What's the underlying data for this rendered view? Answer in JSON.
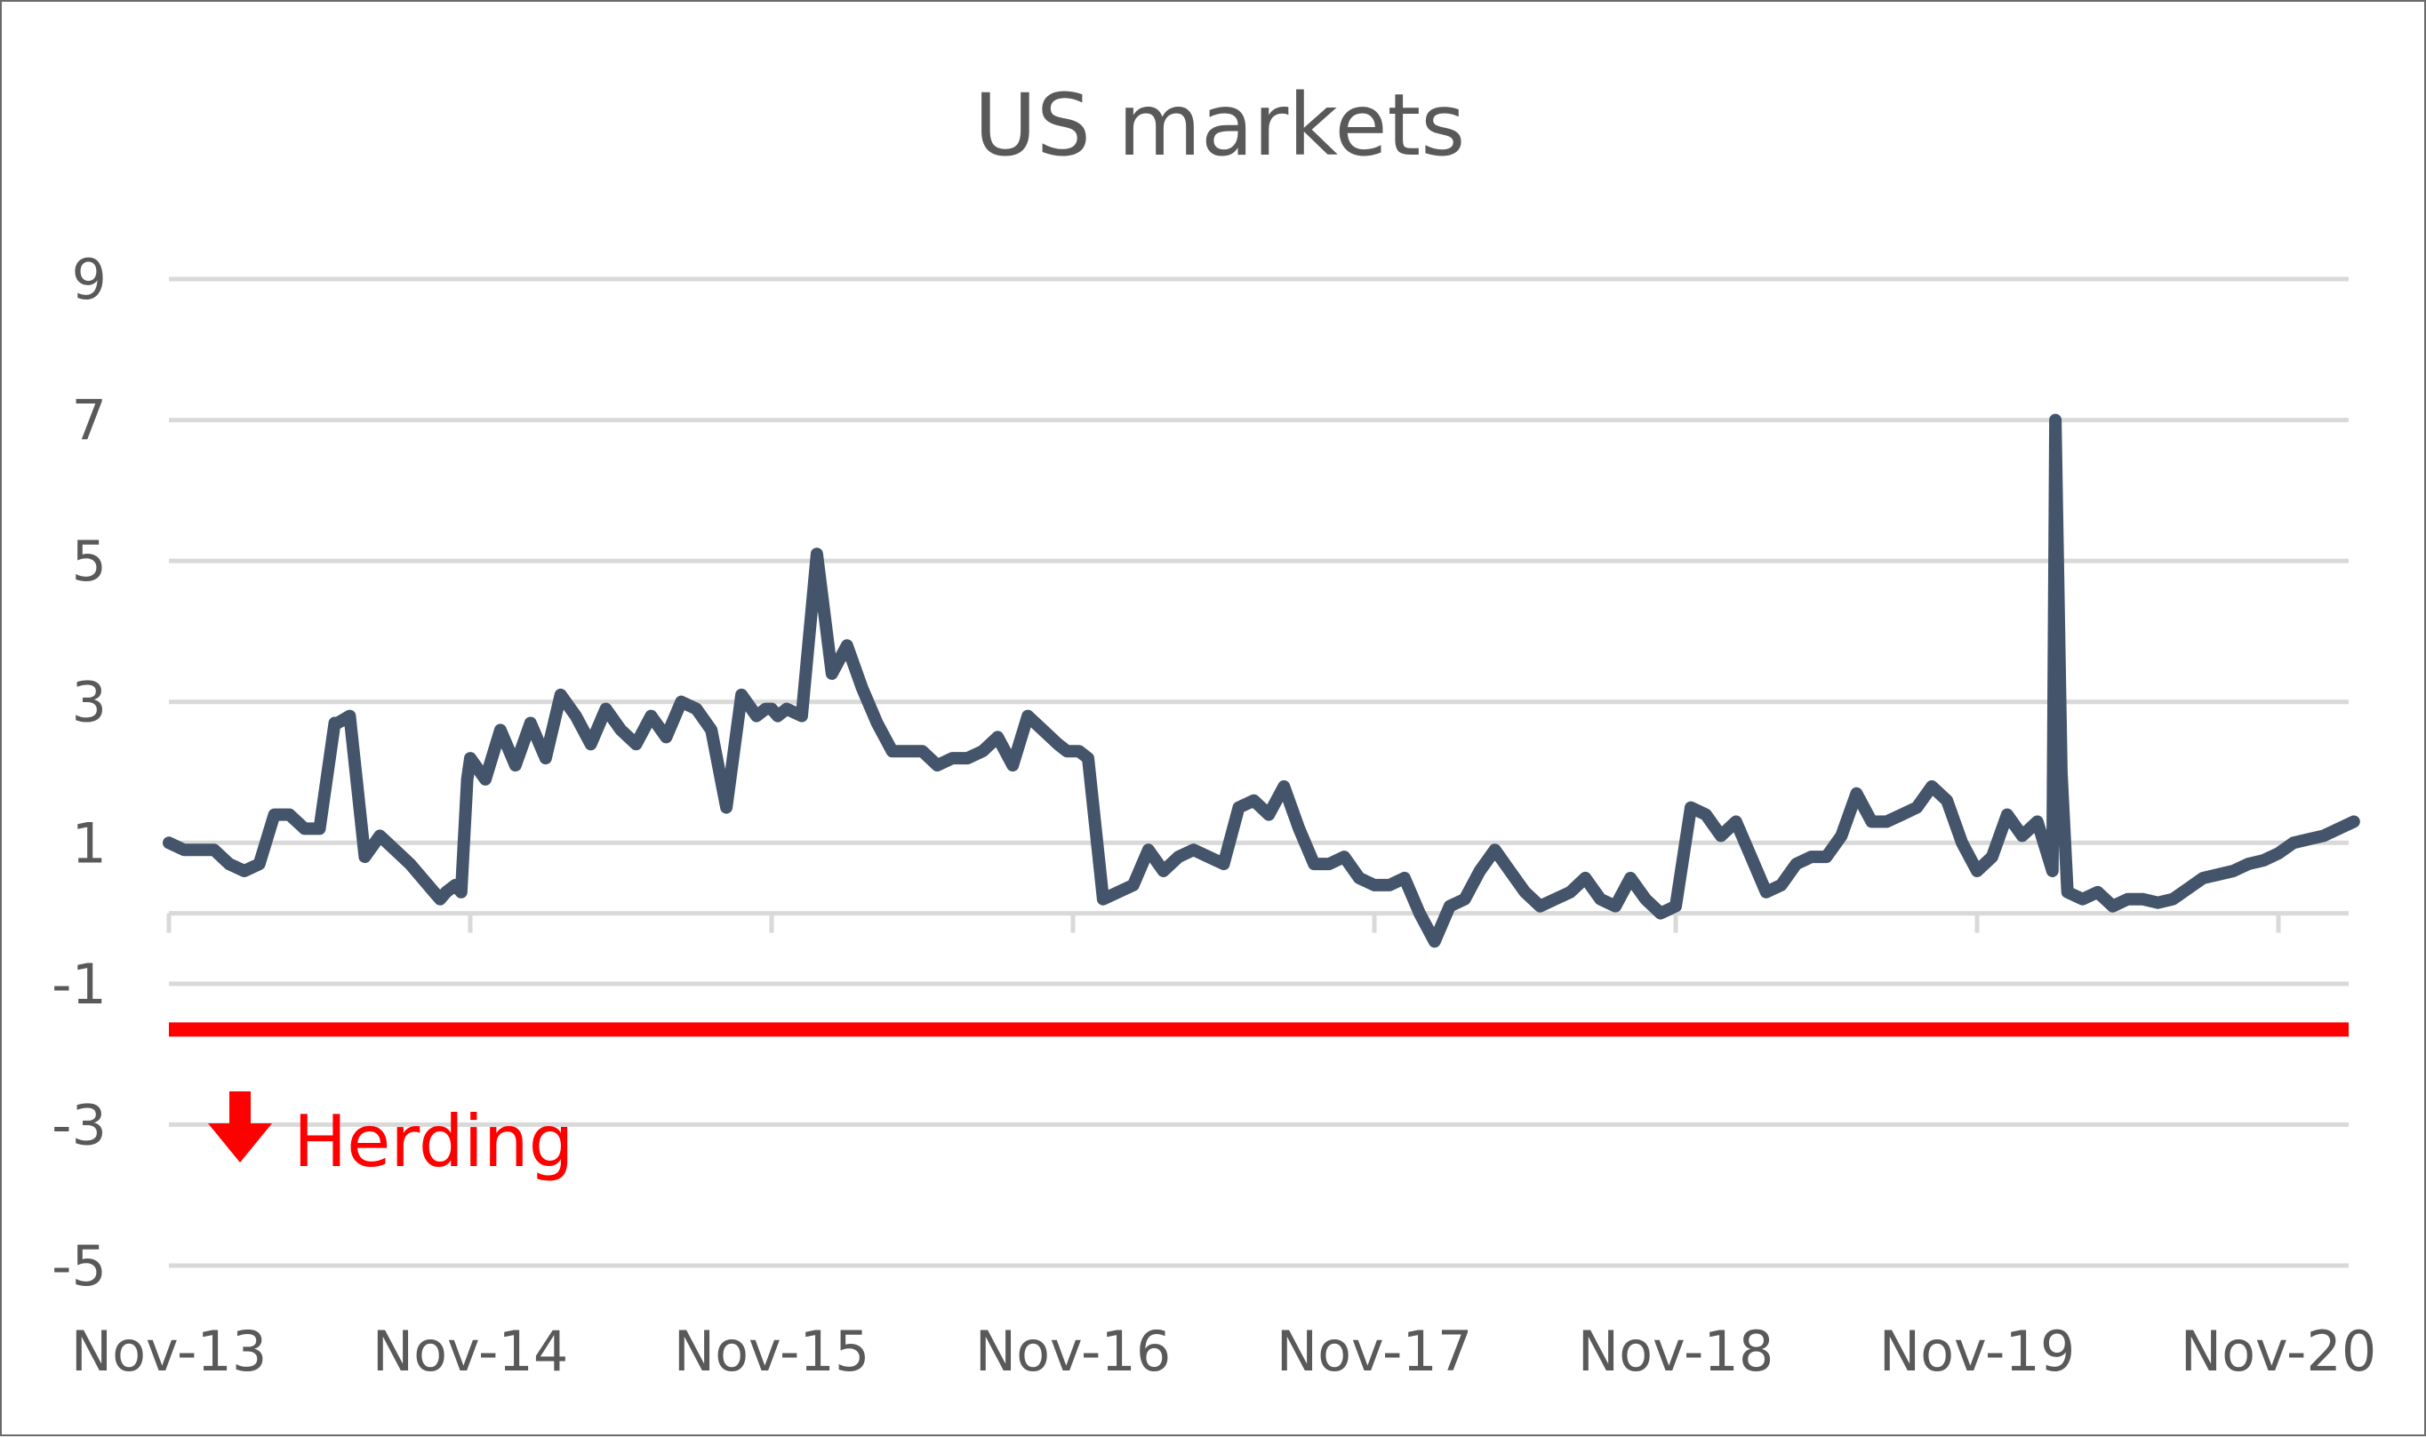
{
  "chart_data": {
    "type": "line",
    "title": "US markets",
    "xlabel": "",
    "ylabel": "",
    "x_tick_labels": [
      "Nov-13",
      "Nov-14",
      "Nov-15",
      "Nov-16",
      "Nov-17",
      "Nov-18",
      "Nov-19",
      "Nov-20"
    ],
    "y_ticks": [
      9,
      7,
      5,
      3,
      1,
      -1,
      -3,
      -5
    ],
    "ylim": [
      -5,
      9
    ],
    "xlim": [
      0,
      7.25
    ],
    "x_axis_crosses_at": 0,
    "grid": true,
    "series": [
      {
        "color": "#44546a",
        "x": [
          0,
          0.05,
          0.1,
          0.15,
          0.2,
          0.25,
          0.3,
          0.35,
          0.4,
          0.45,
          0.5,
          0.55,
          0.56,
          0.6,
          0.65,
          0.7,
          0.75,
          0.8,
          0.88,
          0.9,
          0.92,
          0.95,
          0.97,
          0.99,
          1.0,
          1.05,
          1.1,
          1.15,
          1.2,
          1.25,
          1.3,
          1.35,
          1.4,
          1.45,
          1.5,
          1.55,
          1.6,
          1.65,
          1.7,
          1.75,
          1.8,
          1.85,
          1.9,
          1.95,
          1.98,
          2.0,
          2.02,
          2.05,
          2.1,
          2.15,
          2.2,
          2.25,
          2.3,
          2.35,
          2.4,
          2.45,
          2.5,
          2.55,
          2.6,
          2.65,
          2.7,
          2.75,
          2.8,
          2.85,
          2.9,
          2.95,
          2.98,
          3.0,
          3.02,
          3.05,
          3.1,
          3.15,
          3.2,
          3.25,
          3.3,
          3.35,
          3.4,
          3.45,
          3.5,
          3.55,
          3.6,
          3.65,
          3.7,
          3.75,
          3.8,
          3.85,
          3.9,
          3.95,
          4.0,
          4.05,
          4.1,
          4.15,
          4.2,
          4.25,
          4.3,
          4.35,
          4.4,
          4.45,
          4.5,
          4.55,
          4.6,
          4.65,
          4.7,
          4.75,
          4.8,
          4.85,
          4.9,
          4.95,
          5.0,
          5.05,
          5.1,
          5.15,
          5.2,
          5.25,
          5.3,
          5.35,
          5.4,
          5.45,
          5.5,
          5.55,
          5.6,
          5.65,
          5.7,
          5.75,
          5.8,
          5.85,
          5.9,
          5.95,
          6.0,
          6.05,
          6.1,
          6.15,
          6.2,
          6.25,
          6.26,
          6.28,
          6.3,
          6.35,
          6.4,
          6.45,
          6.5,
          6.55,
          6.6,
          6.65,
          6.7,
          6.75,
          6.8,
          6.85,
          6.9,
          6.95,
          7.0,
          7.05,
          7.1,
          7.15,
          7.2,
          7.25
        ],
        "y": [
          1.0,
          0.9,
          0.9,
          0.9,
          0.7,
          0.6,
          0.7,
          1.4,
          1.4,
          1.2,
          1.2,
          2.7,
          2.7,
          2.8,
          0.8,
          1.1,
          0.9,
          0.7,
          0.3,
          0.2,
          0.3,
          0.4,
          0.3,
          1.9,
          2.2,
          1.9,
          2.6,
          2.1,
          2.7,
          2.2,
          3.1,
          2.8,
          2.4,
          2.9,
          2.6,
          2.4,
          2.8,
          2.5,
          3.0,
          2.9,
          2.6,
          1.5,
          3.1,
          2.8,
          2.9,
          2.9,
          2.8,
          2.9,
          2.8,
          5.1,
          3.4,
          3.8,
          3.2,
          2.7,
          2.3,
          2.3,
          2.3,
          2.1,
          2.2,
          2.2,
          2.3,
          2.5,
          2.1,
          2.8,
          2.6,
          2.4,
          2.3,
          2.3,
          2.3,
          2.2,
          0.2,
          0.3,
          0.4,
          0.9,
          0.6,
          0.8,
          0.9,
          0.8,
          0.7,
          1.5,
          1.6,
          1.4,
          1.8,
          1.2,
          0.7,
          0.7,
          0.8,
          0.5,
          0.4,
          0.4,
          0.5,
          0.0,
          -0.4,
          0.1,
          0.2,
          0.6,
          0.9,
          0.6,
          0.3,
          0.1,
          0.2,
          0.3,
          0.5,
          0.2,
          0.1,
          0.5,
          0.2,
          0.0,
          0.1,
          1.5,
          1.4,
          1.1,
          1.3,
          0.8,
          0.3,
          0.4,
          0.7,
          0.8,
          0.8,
          1.1,
          1.7,
          1.3,
          1.3,
          1.4,
          1.5,
          1.8,
          1.6,
          1.0,
          0.6,
          0.8,
          1.4,
          1.1,
          1.3,
          0.6,
          7.0,
          2.0,
          0.3,
          0.2,
          0.3,
          0.1,
          0.2,
          0.2,
          0.15,
          0.2,
          0.35,
          0.5,
          0.55,
          0.6,
          0.7,
          0.75,
          0.85,
          1.0,
          1.05,
          1.1,
          1.2,
          1.3
        ]
      }
    ],
    "threshold": {
      "value": -1.65,
      "color": "#ff0000"
    },
    "annotation": {
      "text": "Herding",
      "color": "#ff0000",
      "arrow": "down"
    }
  }
}
